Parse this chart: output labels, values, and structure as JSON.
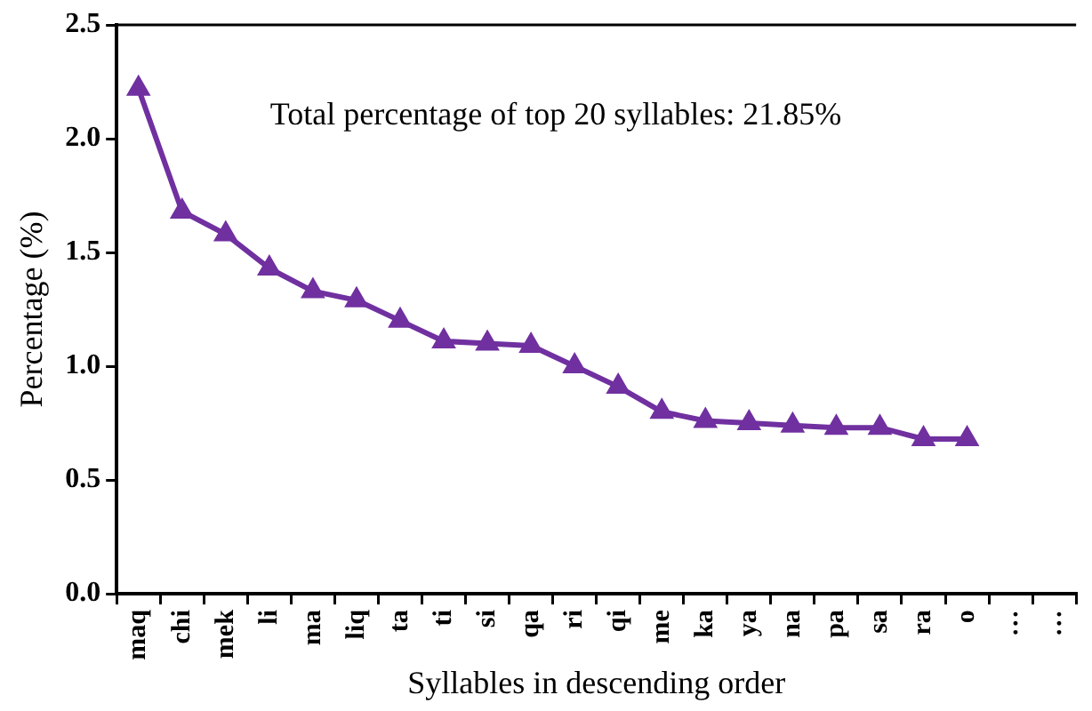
{
  "chart_data": {
    "type": "line",
    "xlabel": "Syllables in descending order",
    "ylabel": "Percentage (%)",
    "categories": [
      "maq",
      "chi",
      "mek",
      "li",
      "ma",
      "liq",
      "ta",
      "ti",
      "si",
      "qa",
      "ri",
      "qi",
      "me",
      "ka",
      "ya",
      "na",
      "pa",
      "sa",
      "ra",
      "o",
      "…",
      "…"
    ],
    "series": [
      {
        "color": "#7030a0",
        "values": [
          2.22,
          1.68,
          1.58,
          1.43,
          1.33,
          1.29,
          1.2,
          1.11,
          1.1,
          1.09,
          1.0,
          0.91,
          0.8,
          0.76,
          0.75,
          0.74,
          0.73,
          0.73,
          0.68,
          0.68,
          null,
          null
        ]
      }
    ],
    "ylim": [
      0,
      2.5
    ],
    "yticks": [
      {
        "value": 0,
        "label": "0.0"
      },
      {
        "value": 0.5,
        "label": "0.5"
      },
      {
        "value": 1,
        "label": "1.0"
      },
      {
        "value": 1.5,
        "label": "1.5"
      },
      {
        "value": 2,
        "label": "2.0"
      },
      {
        "value": 2.5,
        "label": "2.5"
      }
    ],
    "annotations": [
      "Total percentage of top 20 syllables: 21.85%"
    ],
    "grid": false,
    "legend": false,
    "marker": "triangle",
    "line_style": "solid"
  }
}
